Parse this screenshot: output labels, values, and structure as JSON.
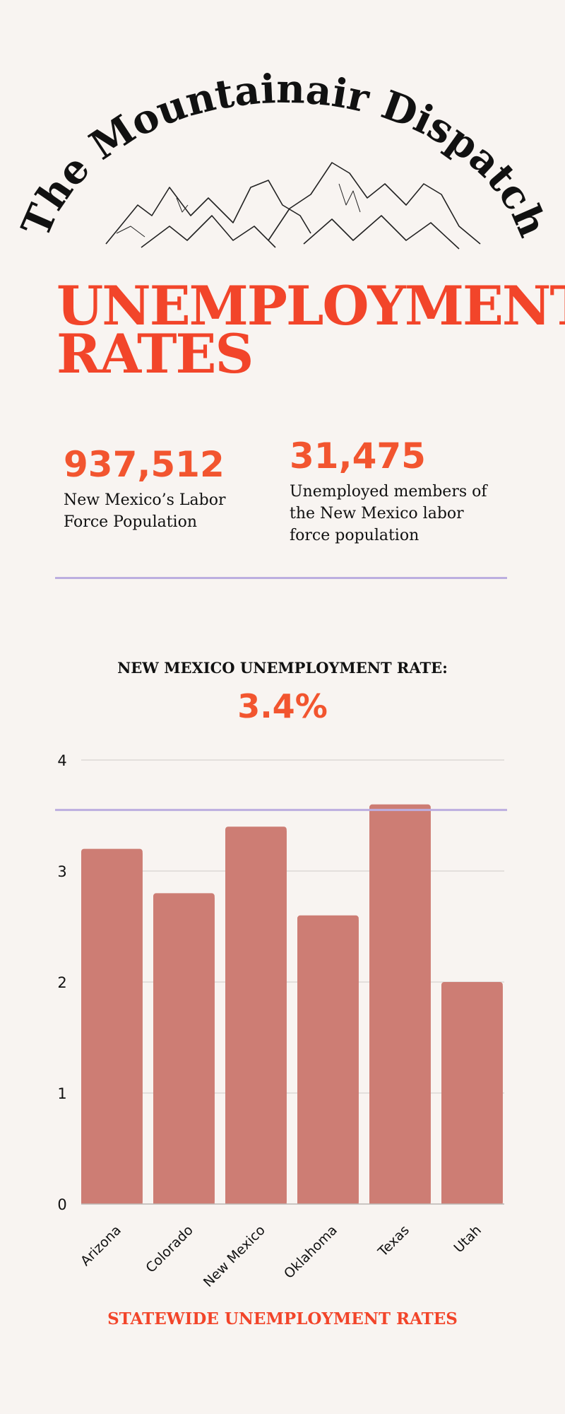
{
  "logo": {
    "text": "The Mountainair Dispatch"
  },
  "title": {
    "line1": "UNEMPLOYMENT",
    "line2": "RATES"
  },
  "stats": [
    {
      "value": "937,512",
      "label_lines": [
        "New Mexico’s Labor",
        "Force Population"
      ]
    },
    {
      "value": "31,475",
      "label_lines": [
        "Unemployed members of",
        "the New Mexico labor",
        "force population"
      ]
    }
  ],
  "headline": {
    "label": "NEW MEXICO UNEMPLOYMENT RATE:",
    "value": "3.4%"
  },
  "chart_data": {
    "type": "bar",
    "categories": [
      "Arizona",
      "Colorado",
      "New Mexico",
      "Oklahoma",
      "Texas",
      "Utah"
    ],
    "values": [
      3.2,
      2.8,
      3.4,
      2.6,
      3.6,
      2.0
    ],
    "ylim": [
      0,
      4
    ],
    "yticks": [
      "0",
      "1",
      "2",
      "3",
      "4"
    ],
    "grid": true,
    "reference_line": 3.55,
    "title": "STATEWIDE UNEMPLOYMENT RATES",
    "xlabel": "",
    "ylabel": ""
  },
  "colors": {
    "accent": "#f2452a",
    "bar": "#cd7d74",
    "divider": "#bcaee0",
    "background": "#f8f4f1"
  }
}
